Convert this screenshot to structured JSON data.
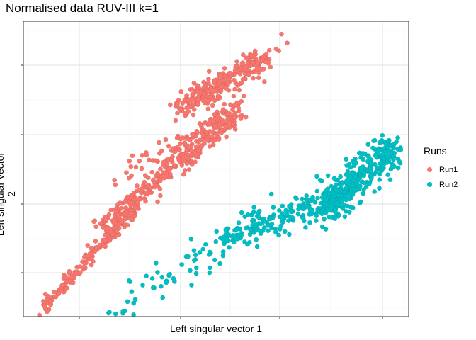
{
  "chart_data": {
    "type": "scatter",
    "title": "Normalised data RUV-III k=1",
    "xlabel": "Left singular vector 1",
    "ylabel": "Left singular vector 2",
    "x_tick_labels_shown": false,
    "y_tick_labels_shown": false,
    "grid": true,
    "legend_placement": "right",
    "legend_title": "Runs",
    "xlim": [
      0,
      1
    ],
    "ylim": [
      0,
      1
    ],
    "series": [
      {
        "name": "Run1",
        "color": "#F8766D",
        "trend_segments": [
          {
            "x0": 0.05,
            "y0": 0.03,
            "x1": 0.3,
            "y1": 0.38,
            "n": 180,
            "spread": 0.012
          },
          {
            "x0": 0.2,
            "y0": 0.3,
            "x1": 0.55,
            "y1": 0.68,
            "n": 300,
            "spread": 0.018
          },
          {
            "x0": 0.4,
            "y0": 0.58,
            "x1": 0.56,
            "y1": 0.72,
            "n": 80,
            "spread": 0.02
          },
          {
            "x0": 0.4,
            "y0": 0.7,
            "x1": 0.62,
            "y1": 0.87,
            "n": 260,
            "spread": 0.022
          },
          {
            "x0": 0.2,
            "y0": 0.45,
            "x1": 0.4,
            "y1": 0.58,
            "n": 30,
            "spread": 0.03
          },
          {
            "x0": 0.58,
            "y0": 0.82,
            "x1": 0.7,
            "y1": 0.96,
            "n": 20,
            "spread": 0.02
          }
        ]
      },
      {
        "name": "Run2",
        "color": "#00BFC4",
        "trend_segments": [
          {
            "x0": 0.23,
            "y0": 0.01,
            "x1": 0.52,
            "y1": 0.26,
            "n": 55,
            "spread": 0.03
          },
          {
            "x0": 0.52,
            "y0": 0.26,
            "x1": 0.8,
            "y1": 0.4,
            "n": 200,
            "spread": 0.025
          },
          {
            "x0": 0.78,
            "y0": 0.36,
            "x1": 0.96,
            "y1": 0.58,
            "n": 380,
            "spread": 0.03
          }
        ]
      }
    ]
  }
}
